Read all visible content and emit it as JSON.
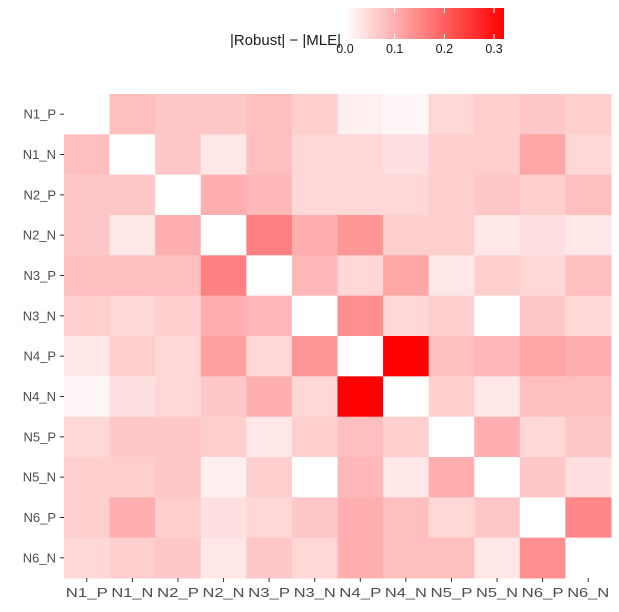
{
  "chart_data": {
    "type": "heatmap",
    "legend": {
      "title": "|Robust| − |MLE|",
      "position": "top",
      "range": [
        0,
        0.32
      ],
      "ticks": [
        "0.0",
        "0.1",
        "0.2",
        "0.3"
      ],
      "tick_values": [
        0,
        0.1,
        0.2,
        0.3
      ],
      "color_low": "#ffffff",
      "color_high": "#ff0000"
    },
    "rows": [
      "N1_P",
      "N1_N",
      "N2_P",
      "N2_N",
      "N3_P",
      "N3_N",
      "N4_P",
      "N4_N",
      "N5_P",
      "N5_N",
      "N6_P",
      "N6_N"
    ],
    "columns": [
      "N1_P",
      "N1_N",
      "N2_P",
      "N2_N",
      "N3_P",
      "N3_N",
      "N4_P",
      "N4_N",
      "N5_P",
      "N5_N",
      "N6_P",
      "N6_N"
    ],
    "values": [
      [
        0.0,
        0.08,
        0.07,
        0.07,
        0.08,
        0.06,
        0.02,
        0.01,
        0.05,
        0.06,
        0.07,
        0.06
      ],
      [
        0.08,
        0.0,
        0.07,
        0.03,
        0.08,
        0.05,
        0.05,
        0.04,
        0.06,
        0.06,
        0.11,
        0.05
      ],
      [
        0.07,
        0.07,
        0.0,
        0.1,
        0.09,
        0.05,
        0.05,
        0.05,
        0.06,
        0.07,
        0.06,
        0.08
      ],
      [
        0.07,
        0.03,
        0.1,
        0.0,
        0.16,
        0.1,
        0.13,
        0.06,
        0.06,
        0.03,
        0.04,
        0.03
      ],
      [
        0.08,
        0.08,
        0.08,
        0.16,
        0.0,
        0.09,
        0.05,
        0.11,
        0.03,
        0.06,
        0.05,
        0.08
      ],
      [
        0.06,
        0.05,
        0.06,
        0.1,
        0.09,
        0.0,
        0.14,
        0.05,
        0.06,
        0.0,
        0.07,
        0.05
      ],
      [
        0.03,
        0.06,
        0.05,
        0.12,
        0.05,
        0.13,
        0.0,
        0.32,
        0.08,
        0.09,
        0.11,
        0.1
      ],
      [
        0.01,
        0.04,
        0.05,
        0.07,
        0.1,
        0.05,
        0.32,
        0.0,
        0.06,
        0.03,
        0.08,
        0.08
      ],
      [
        0.05,
        0.07,
        0.07,
        0.06,
        0.03,
        0.06,
        0.08,
        0.06,
        0.0,
        0.1,
        0.05,
        0.07
      ],
      [
        0.06,
        0.06,
        0.07,
        0.02,
        0.06,
        0.0,
        0.09,
        0.03,
        0.1,
        0.0,
        0.07,
        0.04
      ],
      [
        0.06,
        0.1,
        0.06,
        0.04,
        0.05,
        0.07,
        0.1,
        0.08,
        0.05,
        0.07,
        0.0,
        0.15
      ],
      [
        0.05,
        0.06,
        0.07,
        0.03,
        0.07,
        0.05,
        0.1,
        0.08,
        0.08,
        0.03,
        0.14,
        0.0
      ]
    ]
  }
}
